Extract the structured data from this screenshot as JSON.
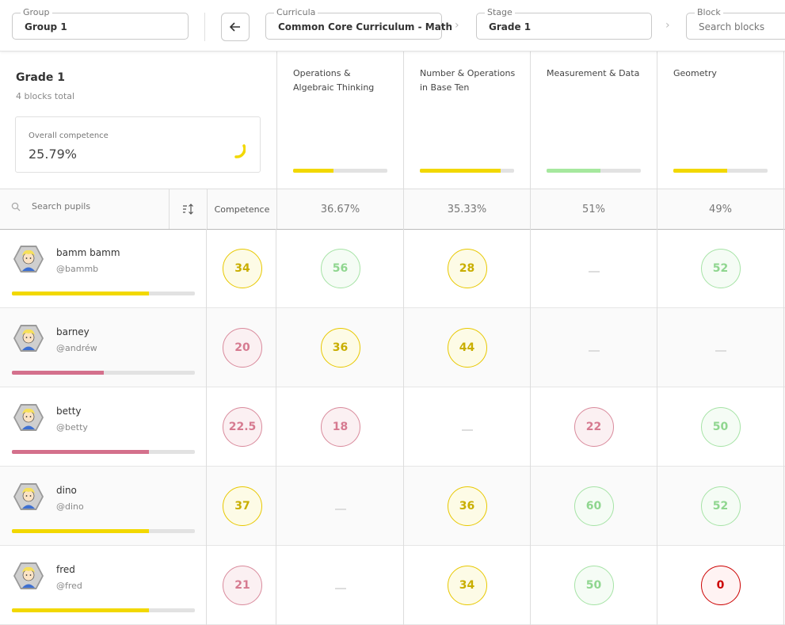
{
  "filters": {
    "group": {
      "label": "Group",
      "value": "Group 1"
    },
    "curricula": {
      "label": "Curricula",
      "value": "Common Core Curriculum - Math"
    },
    "stage": {
      "label": "Stage",
      "value": "Grade 1"
    },
    "block": {
      "label": "Block",
      "placeholder": "Search blocks"
    }
  },
  "summary": {
    "title": "Grade 1",
    "subtitle": "4 blocks total",
    "competence_label": "Overall competence",
    "competence_value": "25.79%"
  },
  "blocks": [
    {
      "name": "Operations & Algebraic Thinking",
      "progress": 0.43,
      "color": "#f2d800",
      "average": "36.67%"
    },
    {
      "name": "Number & Operations in Base Ten",
      "progress": 0.86,
      "color": "#f2d800",
      "average": "35.33%"
    },
    {
      "name": "Measurement & Data",
      "progress": 0.57,
      "color": "#a6e89e",
      "average": "51%"
    },
    {
      "name": "Geometry",
      "progress": 0.57,
      "color": "#f2d800",
      "average": "49%"
    }
  ],
  "table": {
    "search_placeholder": "Search pupils",
    "competence_header": "Competence"
  },
  "pupils": [
    {
      "name": "bamm bamm",
      "username": "@bammb",
      "progress": 0.75,
      "bar_color": "#f2d800",
      "competence": {
        "value": "34",
        "tone": "y"
      },
      "scores": [
        {
          "value": "56",
          "tone": "g"
        },
        {
          "value": "28",
          "tone": "y"
        },
        null,
        {
          "value": "52",
          "tone": "g"
        }
      ]
    },
    {
      "name": "barney",
      "username": "@andréw",
      "progress": 0.5,
      "bar_color": "#d4708c",
      "competence": {
        "value": "20",
        "tone": "r"
      },
      "scores": [
        {
          "value": "36",
          "tone": "y"
        },
        {
          "value": "44",
          "tone": "y"
        },
        null,
        null
      ]
    },
    {
      "name": "betty",
      "username": "@betty",
      "progress": 0.75,
      "bar_color": "#d4708c",
      "competence": {
        "value": "22.5",
        "tone": "r"
      },
      "scores": [
        {
          "value": "18",
          "tone": "r"
        },
        null,
        {
          "value": "22",
          "tone": "r"
        },
        {
          "value": "50",
          "tone": "g"
        }
      ]
    },
    {
      "name": "dino",
      "username": "@dino",
      "progress": 0.75,
      "bar_color": "#f2d800",
      "competence": {
        "value": "37",
        "tone": "y"
      },
      "scores": [
        null,
        {
          "value": "36",
          "tone": "y"
        },
        {
          "value": "60",
          "tone": "g"
        },
        {
          "value": "52",
          "tone": "g"
        }
      ]
    },
    {
      "name": "fred",
      "username": "@fred",
      "progress": 0.75,
      "bar_color": "#f2d800",
      "competence": {
        "value": "21",
        "tone": "r"
      },
      "scores": [
        null,
        {
          "value": "34",
          "tone": "y"
        },
        {
          "value": "50",
          "tone": "g"
        },
        {
          "value": "0",
          "tone": "red"
        }
      ]
    }
  ]
}
